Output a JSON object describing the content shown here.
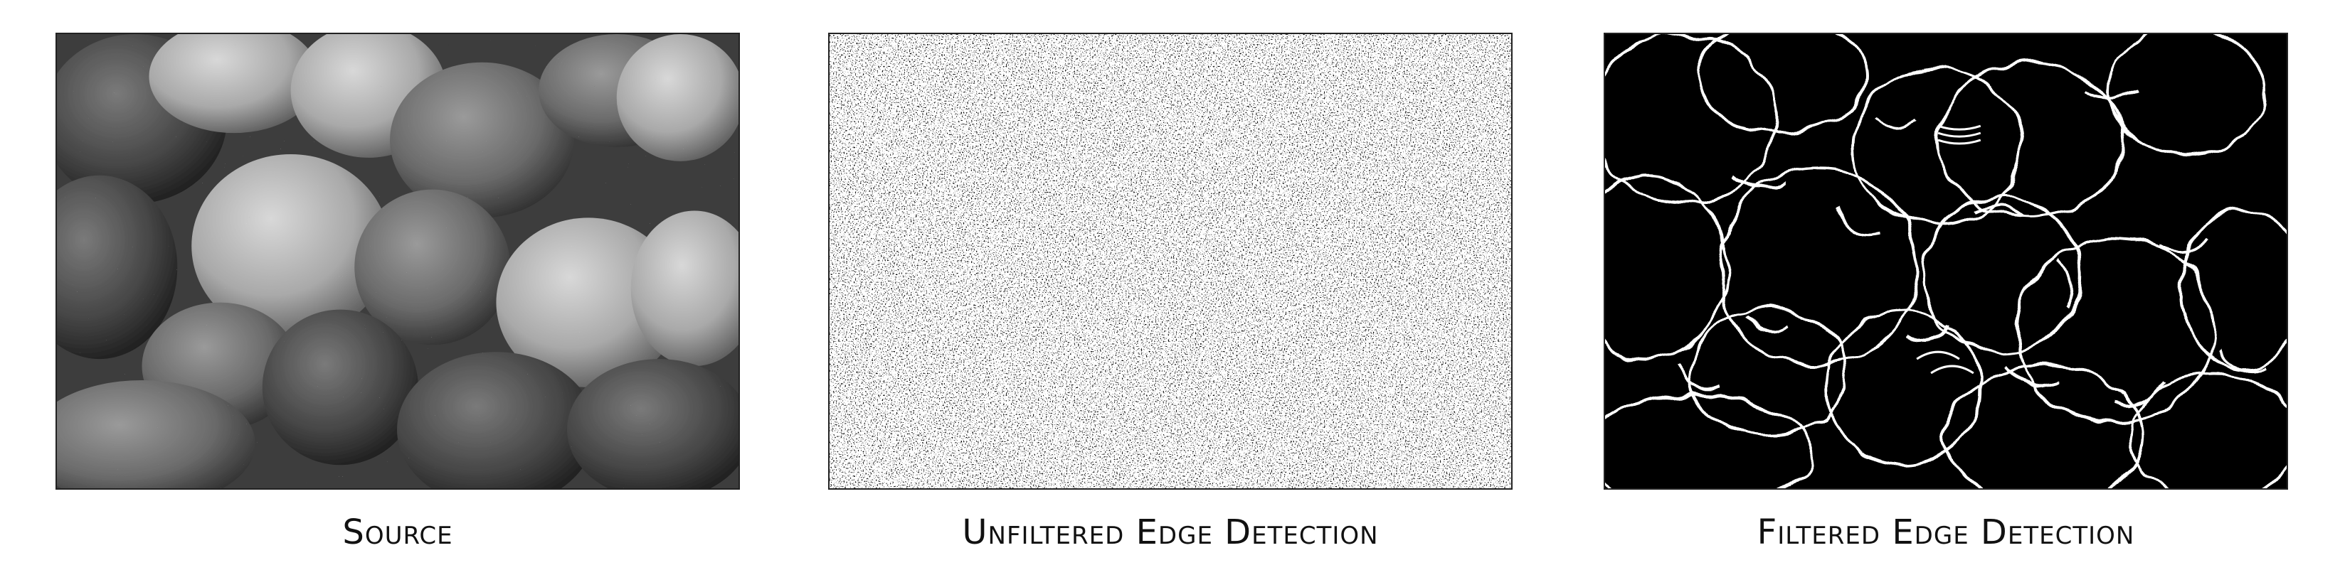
{
  "figure": {
    "panels": [
      {
        "caption": "Source",
        "image": "noisy-grayscale-peppers"
      },
      {
        "caption": "Unfiltered Edge Detection",
        "image": "unfiltered-edge-map"
      },
      {
        "caption": "Filtered Edge Detection",
        "image": "filtered-edge-map"
      }
    ],
    "colors": {
      "frame": "#222222",
      "caption": "#111111"
    }
  }
}
